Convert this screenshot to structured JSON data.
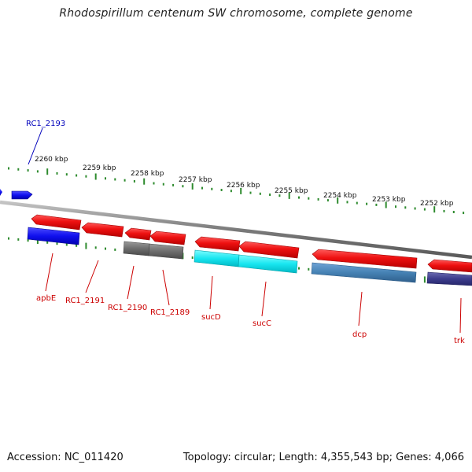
{
  "title": "Rhodospirillum centenum SW chromosome, complete genome",
  "footer": {
    "accession": "Accession: NC_011420",
    "topology": "Topology: circular; Length: 4,355,543 bp; Genes: 4,066"
  },
  "colors": {
    "backbone": "#8a8a8a",
    "tick": "#2e8b2e",
    "forward_gene": "#e8141e",
    "label_red": "#cc0000",
    "label_blue": "#0000bb"
  },
  "scale_labels": [
    "2260 kbp",
    "2259 kbp",
    "2258 kbp",
    "2257 kbp",
    "2256 kbp",
    "2255 kbp",
    "2254 kbp",
    "2253 kbp",
    "2252 kbp"
  ],
  "gene_labels": [
    {
      "text": "RC1_2193",
      "color": "blue"
    },
    {
      "text": "apbE",
      "color": "red"
    },
    {
      "text": "RC1_2191",
      "color": "red"
    },
    {
      "text": "RC1_2190",
      "color": "red"
    },
    {
      "text": "RC1_2189",
      "color": "red"
    },
    {
      "text": "sucD",
      "color": "red"
    },
    {
      "text": "sucC",
      "color": "red"
    },
    {
      "text": "dcp",
      "color": "red"
    },
    {
      "text": "trk",
      "color": "red"
    }
  ]
}
